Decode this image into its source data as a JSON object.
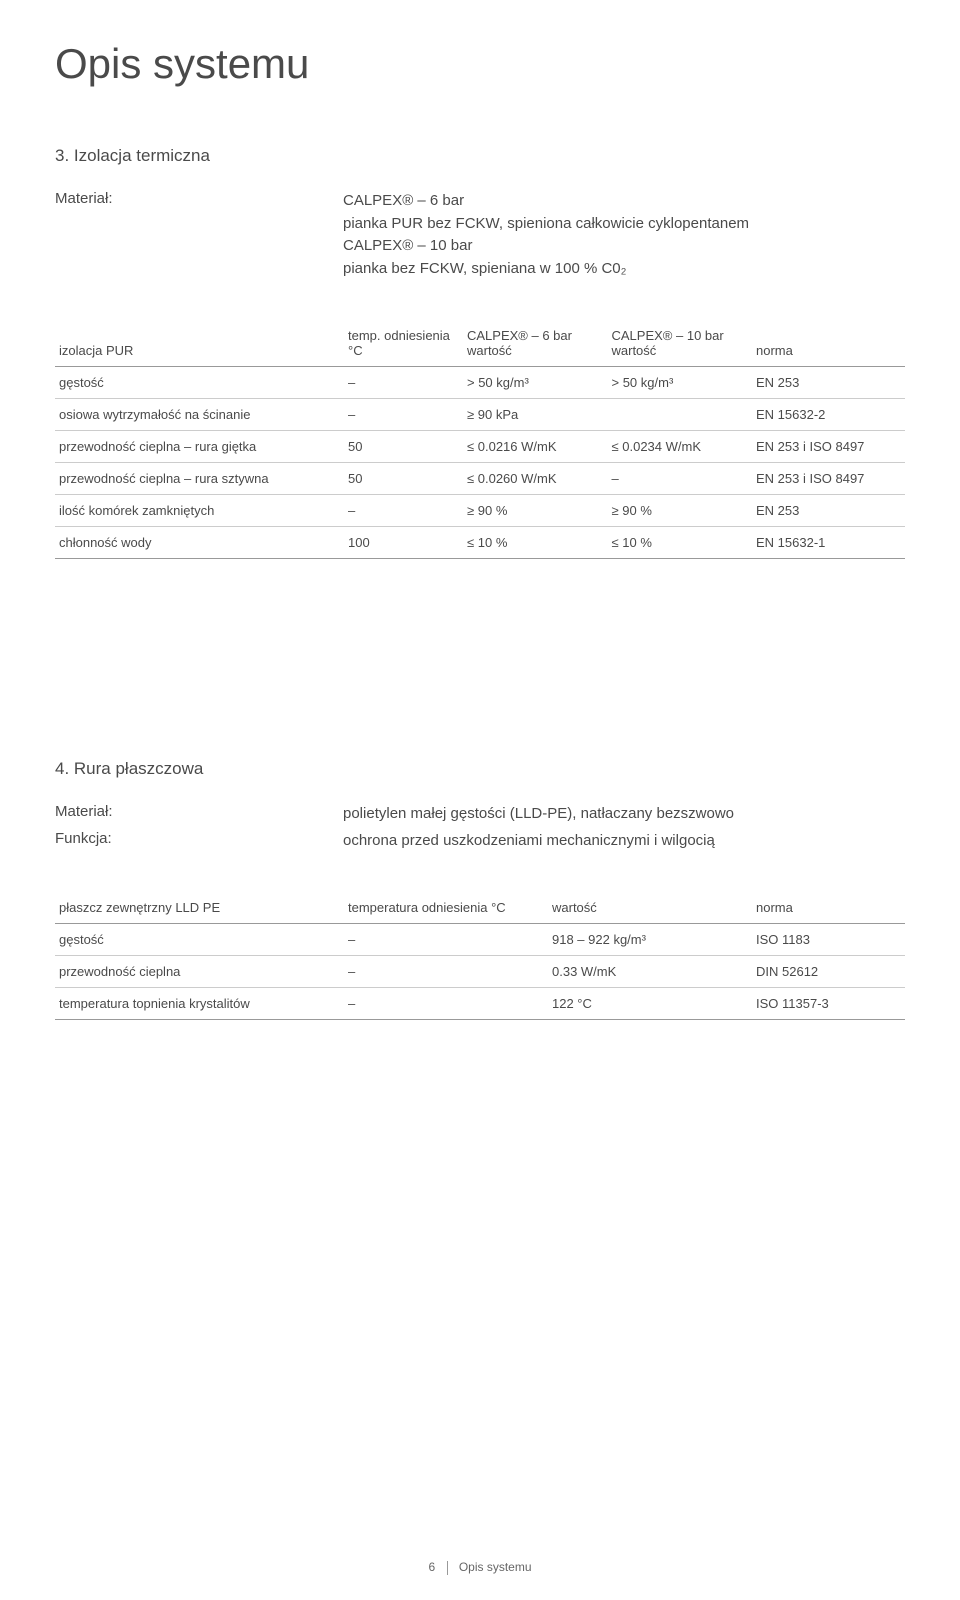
{
  "page_title": "Opis systemu",
  "section3": {
    "heading": "3. Izolacja termiczna",
    "material_label": "Materiał:",
    "material_lines": [
      "CALPEX® – 6 bar",
      "pianka PUR bez FCKW, spieniona całkowicie cyklopentanem",
      "CALPEX® – 10 bar",
      "pianka bez FCKW, spieniana w 100 % C0₂"
    ],
    "table": {
      "header": {
        "label": "izolacja PUR",
        "temp": "temp. odniesienia °C",
        "a": "CALPEX® – 6 bar wartość",
        "b": "CALPEX® – 10 bar wartość",
        "norm": "norma"
      },
      "rows": [
        {
          "label": "gęstość",
          "temp": "–",
          "a": "> 50 kg/m³",
          "b": "> 50 kg/m³",
          "norm": "EN 253"
        },
        {
          "label": "osiowa wytrzymałość na ścinanie",
          "temp": "–",
          "a": "≥ 90 kPa",
          "b": "",
          "norm": "EN 15632-2"
        },
        {
          "label": "przewodność cieplna – rura giętka",
          "temp": "50",
          "a": "≤ 0.0216 W/mK",
          "b": "≤ 0.0234 W/mK",
          "norm": "EN 253 i ISO 8497"
        },
        {
          "label": "przewodność cieplna – rura sztywna",
          "temp": "50",
          "a": "≤ 0.0260 W/mK",
          "b": "–",
          "norm": "EN 253 i ISO 8497"
        },
        {
          "label": "ilość komórek zamkniętych",
          "temp": "–",
          "a": "≥ 90 %",
          "b": "≥ 90 %",
          "norm": "EN 253"
        },
        {
          "label": "chłonność wody",
          "temp": "100",
          "a": "≤ 10 %",
          "b": "≤ 10 %",
          "norm": "EN 15632-1"
        }
      ]
    }
  },
  "section4": {
    "heading": "4. Rura płaszczowa",
    "material_label": "Materiał:",
    "material_value": "polietylen małej gęstości (LLD-PE), natłaczany bezszwowo",
    "function_label": "Funkcja:",
    "function_value": "ochrona przed uszkodzeniami mechanicznymi i wilgocią",
    "table": {
      "header": {
        "label": "płaszcz zewnętrzny LLD PE",
        "temp": "temperatura odniesienia °C",
        "val": "wartość",
        "norm": "norma"
      },
      "rows": [
        {
          "label": "gęstość",
          "temp": "–",
          "val": "918 – 922 kg/m³",
          "norm": "ISO 1183"
        },
        {
          "label": "przewodność cieplna",
          "temp": "–",
          "val": "0.33 W/mK",
          "norm": "DIN 52612"
        },
        {
          "label": "temperatura topnienia krystalitów",
          "temp": "–",
          "val": "122 °C",
          "norm": "ISO 11357-3"
        }
      ]
    }
  },
  "footer": {
    "page": "6",
    "label": "Opis systemu"
  }
}
